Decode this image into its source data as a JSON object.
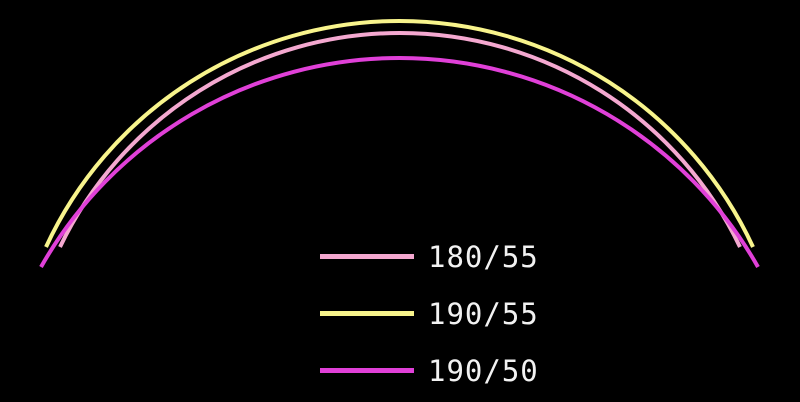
{
  "series": [
    {
      "label": "180/55",
      "color": "#f4a8d0"
    },
    {
      "label": "190/55",
      "color": "#f8f48c"
    },
    {
      "label": "190/50",
      "color": "#e040d8"
    }
  ]
}
